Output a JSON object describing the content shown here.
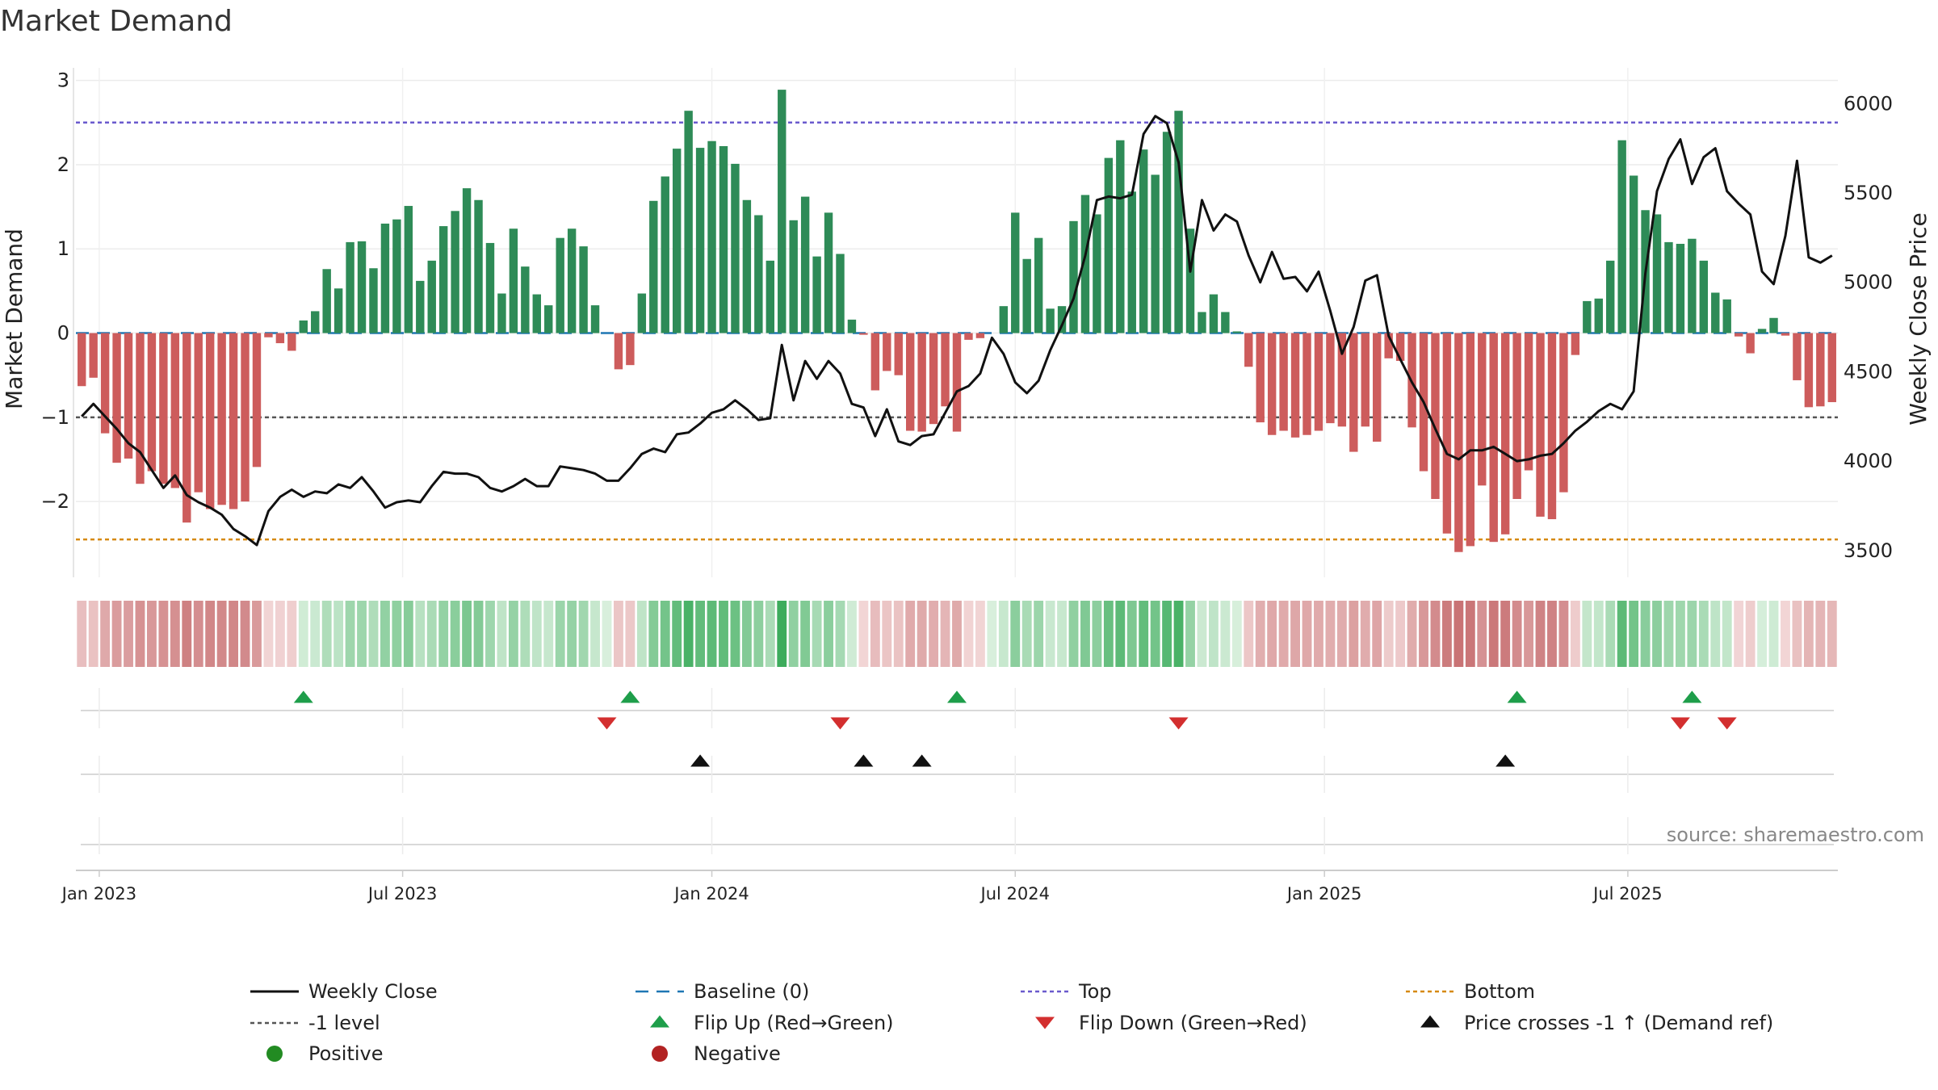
{
  "chart_data": {
    "type": "bar",
    "title": "Market Demand",
    "ylabel": "Market Demand",
    "y2label": "Weekly Close Price",
    "ylim": [
      -2.9,
      3.15
    ],
    "y2lim": [
      3350,
      6200
    ],
    "yticks": [
      3,
      2,
      1,
      0,
      -1,
      -2
    ],
    "ytick_labels": [
      "3",
      "2",
      "1",
      "0",
      "−1",
      "−2"
    ],
    "y2ticks": [
      6000,
      5500,
      5000,
      4500,
      4000,
      3500
    ],
    "y2tick_labels": [
      "6000",
      "5500",
      "5000",
      "4500",
      "4000",
      "3500"
    ],
    "xticks": [
      {
        "label": "Jan 2023",
        "week": 2
      },
      {
        "label": "Jul 2023",
        "week": 28
      },
      {
        "label": "Jan 2024",
        "week": 54.5
      },
      {
        "label": "Jul 2024",
        "week": 80.5
      },
      {
        "label": "Jan 2025",
        "week": 107
      },
      {
        "label": "Jul 2025",
        "week": 133
      }
    ],
    "reference_lines": {
      "top": 2.5,
      "minus_one": -1,
      "bottom": -2.45,
      "baseline": 0
    },
    "series": [
      {
        "name": "Market Demand",
        "values": [
          -0.63,
          -0.53,
          -1.19,
          -1.54,
          -1.49,
          -1.79,
          -1.64,
          -1.79,
          -1.84,
          -2.25,
          -1.89,
          -2.09,
          -2.04,
          -2.09,
          -2.0,
          -1.59,
          -0.05,
          -0.12,
          -0.21,
          0.15,
          0.26,
          0.76,
          0.53,
          1.08,
          1.09,
          0.77,
          1.3,
          1.35,
          1.51,
          0.62,
          0.86,
          1.27,
          1.45,
          1.72,
          1.58,
          1.07,
          0.47,
          1.24,
          0.79,
          0.46,
          0.33,
          1.13,
          1.24,
          1.03,
          0.33,
          0.0,
          -0.43,
          -0.38,
          0.47,
          1.57,
          1.86,
          2.19,
          2.64,
          2.2,
          2.28,
          2.22,
          2.01,
          1.58,
          1.4,
          0.86,
          2.89,
          1.34,
          1.62,
          0.91,
          1.43,
          0.94,
          0.16,
          -0.02,
          -0.68,
          -0.45,
          -0.5,
          -1.16,
          -1.17,
          -1.08,
          -0.87,
          -1.17,
          -0.08,
          -0.06,
          0.0,
          0.32,
          1.43,
          0.88,
          1.13,
          0.29,
          0.32,
          1.33,
          1.64,
          1.41,
          2.08,
          2.29,
          1.68,
          2.18,
          1.88,
          2.39,
          2.64,
          1.24,
          0.25,
          0.46,
          0.25,
          0.02,
          -0.4,
          -1.06,
          -1.21,
          -1.16,
          -1.24,
          -1.21,
          -1.16,
          -1.07,
          -1.11,
          -1.41,
          -1.11,
          -1.29,
          -0.3,
          -0.33,
          -1.12,
          -1.64,
          -1.97,
          -2.38,
          -2.6,
          -2.53,
          -1.81,
          -2.48,
          -2.39,
          -1.97,
          -1.63,
          -2.18,
          -2.21,
          -1.89,
          -0.26,
          0.38,
          0.41,
          0.86,
          2.29,
          1.87,
          1.46,
          1.41,
          1.08,
          1.06,
          1.12,
          0.86,
          0.48,
          0.4,
          -0.04,
          -0.24,
          0.05,
          0.18,
          -0.03,
          -0.56,
          -0.88,
          -0.87,
          -0.82
        ]
      },
      {
        "name": "Weekly Close",
        "values": [
          4250,
          4320,
          4250,
          4180,
          4100,
          4050,
          3950,
          3850,
          3920,
          3810,
          3770,
          3740,
          3700,
          3620,
          3580,
          3530,
          3720,
          3800,
          3840,
          3800,
          3830,
          3820,
          3870,
          3850,
          3910,
          3830,
          3740,
          3770,
          3780,
          3770,
          3860,
          3940,
          3930,
          3930,
          3910,
          3850,
          3830,
          3860,
          3900,
          3860,
          3860,
          3970,
          3960,
          3950,
          3930,
          3890,
          3890,
          3960,
          4040,
          4070,
          4050,
          4150,
          4160,
          4210,
          4270,
          4290,
          4340,
          4290,
          4230,
          4240,
          4650,
          4340,
          4560,
          4460,
          4560,
          4490,
          4320,
          4300,
          4140,
          4290,
          4110,
          4090,
          4140,
          4150,
          4270,
          4390,
          4420,
          4490,
          4690,
          4600,
          4440,
          4380,
          4450,
          4620,
          4760,
          4910,
          5150,
          5460,
          5480,
          5470,
          5490,
          5830,
          5930,
          5890,
          5670,
          5060,
          5460,
          5290,
          5380,
          5340,
          5150,
          5000,
          5170,
          5020,
          5030,
          4950,
          5060,
          4840,
          4600,
          4750,
          5010,
          5040,
          4700,
          4570,
          4440,
          4330,
          4180,
          4040,
          4010,
          4060,
          4060,
          4080,
          4040,
          4000,
          4010,
          4030,
          4040,
          4100,
          4170,
          4220,
          4280,
          4320,
          4290,
          4390,
          5050,
          5510,
          5690,
          5800,
          5550,
          5700,
          5750,
          5510,
          5440,
          5380,
          5060,
          4990,
          5260,
          5680,
          5140,
          5110,
          5150
        ]
      },
      {
        "name": "Flip Up (Red→Green)",
        "weeks": [
          19,
          47,
          75,
          123,
          138
        ]
      },
      {
        "name": "Flip Down (Green→Red)",
        "weeks": [
          45,
          65,
          94,
          137,
          141
        ]
      },
      {
        "name": "Price crosses -1 ↑ (Demand ref)",
        "weeks": [
          53,
          67,
          72,
          122
        ]
      }
    ],
    "legend": {
      "position": "bottom",
      "entries": [
        "Weekly Close",
        "Baseline (0)",
        "Top",
        "Bottom",
        "-1 level",
        "Flip Up (Red→Green)",
        "Flip Down (Green→Red)",
        "Price crosses -1 ↑ (Demand ref)",
        "Positive",
        "Negative"
      ]
    },
    "annotation": "source: sharemaestro.com"
  },
  "colors": {
    "pos_bar": "#2e8b57",
    "neg_bar": "#cd5c5c",
    "price": "#111111",
    "baseline": "#1f77b4",
    "top": "#6a5acd",
    "bottom": "#d68910",
    "minus_one": "#555555",
    "flip_up": "#1e9e4a",
    "flip_down": "#d32f2f",
    "cross": "#111111",
    "positive": "#228b22",
    "negative": "#b22222"
  }
}
